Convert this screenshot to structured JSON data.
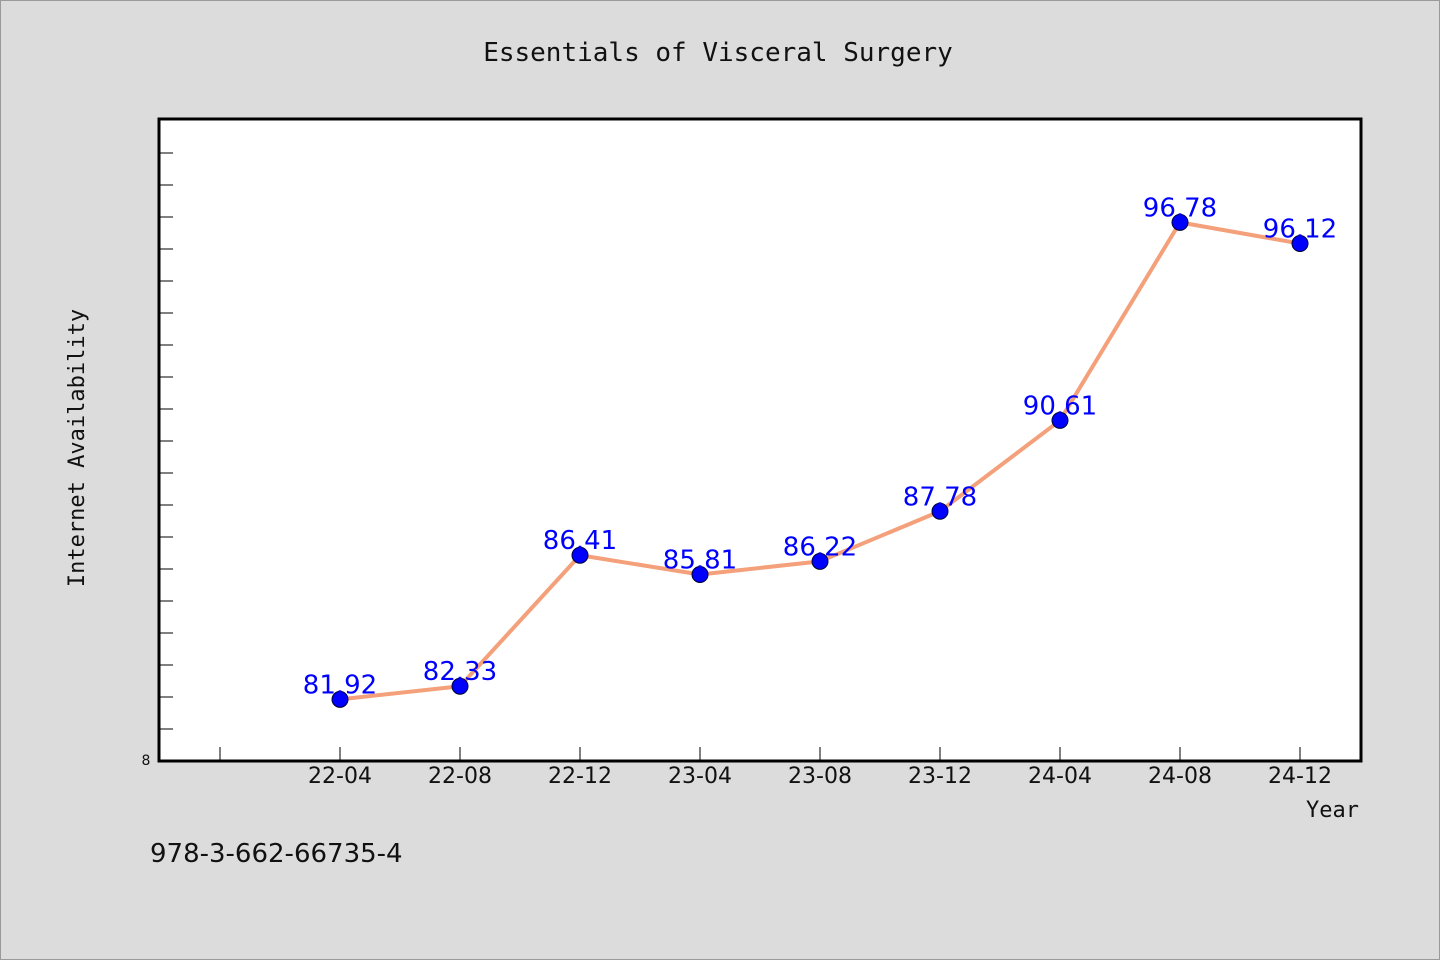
{
  "chart_data": {
    "type": "line",
    "title": "Essentials of Visceral Surgery",
    "xlabel": "Year",
    "ylabel": "Internet Availability",
    "categories": [
      "22-04",
      "22-08",
      "22-12",
      "23-04",
      "23-08",
      "23-12",
      "24-04",
      "24-08",
      "24-12"
    ],
    "series": [
      {
        "values": [
          81.92,
          82.33,
          86.41,
          85.81,
          86.22,
          87.78,
          90.61,
          96.78,
          96.12
        ],
        "labels": [
          "81.92",
          "82.33",
          "86.41",
          "85.81",
          "86.22",
          "87.78",
          "90.61",
          "96.78",
          "96.12"
        ],
        "line_color": "#f4a07a",
        "marker_color": "#0000ff"
      }
    ],
    "y_tick_label": "8",
    "ylim": [
      80,
      100
    ],
    "grid": false,
    "legend": "none"
  },
  "footer": {
    "isbn": "978-3-662-66735-4"
  },
  "colors": {
    "background": "#dcdcdc",
    "plot_background": "#ffffff",
    "data_label": "#0000ff"
  }
}
